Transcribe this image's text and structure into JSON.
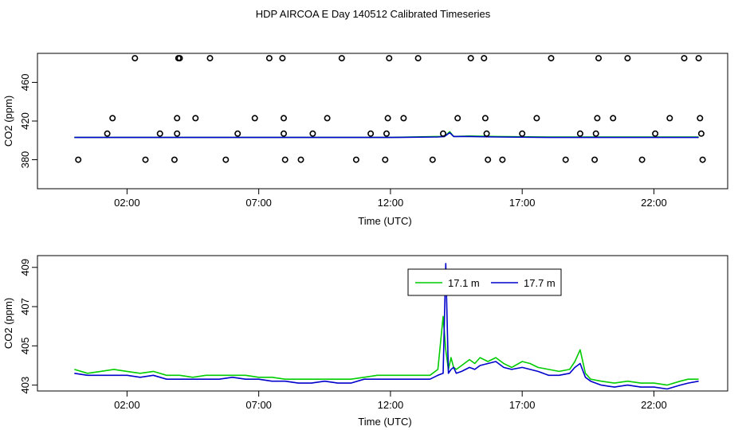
{
  "chart_title": "HDP AIRCOA E  Day 140512  Calibrated Timeseries",
  "colors": {
    "series_17_1": "#00cc00",
    "series_17_7": "#0000cc",
    "calibration_markers": "#000000"
  },
  "chart_data": [
    {
      "type": "scatter",
      "title": "",
      "xlabel": "Time (UTC)",
      "ylabel": "CO2 (ppm)",
      "xlim": [
        -1.4,
        24.8
      ],
      "ylim": [
        350,
        490
      ],
      "x_ticks": [
        2,
        7,
        12,
        17,
        22
      ],
      "x_tick_labels": [
        "02:00",
        "07:00",
        "12:00",
        "17:00",
        "22:00"
      ],
      "y_ticks": [
        380,
        420,
        460
      ],
      "y_tick_labels": [
        "380",
        "420",
        "460"
      ],
      "grid": false,
      "legend": "none",
      "calibration_points": {
        "x": [
          0.15,
          1.25,
          1.45,
          2.3,
          2.7,
          3.25,
          3.8,
          3.9,
          3.9,
          3.95,
          4.0,
          4.6,
          5.15,
          5.75,
          6.2,
          6.85,
          7.4,
          7.9,
          7.95,
          7.95,
          8.0,
          8.6,
          9.05,
          9.6,
          10.15,
          10.7,
          11.25,
          11.8,
          11.85,
          11.9,
          11.95,
          12.5,
          13.05,
          13.6,
          14.0,
          14.55,
          15.05,
          15.55,
          15.6,
          15.65,
          15.7,
          16.25,
          17.0,
          17.55,
          18.1,
          18.65,
          19.2,
          19.75,
          19.8,
          19.85,
          19.9,
          20.45,
          21.0,
          21.55,
          22.05,
          22.6,
          23.15,
          23.7,
          23.75,
          23.8,
          23.85
        ],
        "y": [
          380,
          407,
          423,
          485,
          380,
          407,
          380,
          407,
          423,
          485,
          485,
          423,
          485,
          380,
          407,
          423,
          485,
          485,
          423,
          407,
          380,
          380,
          407,
          423,
          485,
          380,
          407,
          380,
          407,
          423,
          485,
          423,
          485,
          380,
          407,
          423,
          485,
          485,
          423,
          407,
          380,
          380,
          407,
          423,
          485,
          380,
          407,
          380,
          407,
          423,
          485,
          423,
          485,
          380,
          407,
          423,
          485,
          485,
          423,
          407,
          380
        ]
      },
      "series": [
        {
          "x": [
            0.0,
            4.0,
            8.0,
            12.0,
            13.8,
            14.05,
            14.25,
            14.4,
            15.0,
            16.0,
            18.0,
            21.0,
            23.7
          ],
          "values": [
            403,
            403,
            403,
            403,
            404,
            404,
            409,
            404,
            404.5,
            404,
            403.5,
            403.5,
            403.5
          ]
        },
        {
          "x": [
            0.0,
            4.0,
            8.0,
            12.0,
            13.8,
            14.05,
            14.25,
            14.4,
            15.0,
            16.0,
            18.0,
            21.0,
            23.7
          ],
          "values": [
            403,
            403,
            403,
            403,
            403.5,
            404,
            408,
            404,
            404,
            403.5,
            403,
            403,
            403
          ]
        }
      ]
    },
    {
      "type": "line",
      "title": "",
      "xlabel": "Time (UTC)",
      "ylabel": "CO2 (ppm)",
      "xlim": [
        -1.4,
        24.8
      ],
      "ylim": [
        402.7,
        409.6
      ],
      "x_ticks": [
        2,
        7,
        12,
        17,
        22
      ],
      "x_tick_labels": [
        "02:00",
        "07:00",
        "12:00",
        "17:00",
        "22:00"
      ],
      "y_ticks": [
        403,
        405,
        407,
        409
      ],
      "y_tick_labels": [
        "403",
        "405",
        "407",
        "409"
      ],
      "grid": false,
      "legend": "top-center",
      "series": [
        {
          "name": "17.1 m",
          "x": [
            0.0,
            0.5,
            1.0,
            1.5,
            2.0,
            2.5,
            3.0,
            3.5,
            4.0,
            4.5,
            5.0,
            5.5,
            6.0,
            6.5,
            7.0,
            7.5,
            8.0,
            8.5,
            9.0,
            9.5,
            10.0,
            10.5,
            11.0,
            11.5,
            12.0,
            12.5,
            13.0,
            13.5,
            13.8,
            14.0,
            14.1,
            14.2,
            14.3,
            14.4,
            14.5,
            14.7,
            15.0,
            15.2,
            15.4,
            15.7,
            16.0,
            16.3,
            16.6,
            17.0,
            17.3,
            17.6,
            18.0,
            18.4,
            18.8,
            19.0,
            19.2,
            19.4,
            19.6,
            20.0,
            20.5,
            21.0,
            21.5,
            22.0,
            22.5,
            23.0,
            23.3,
            23.7
          ],
          "values": [
            403.8,
            403.6,
            403.7,
            403.8,
            403.7,
            403.6,
            403.7,
            403.5,
            403.5,
            403.4,
            403.5,
            403.5,
            403.5,
            403.5,
            403.4,
            403.4,
            403.3,
            403.3,
            403.3,
            403.3,
            403.3,
            403.3,
            403.4,
            403.5,
            403.5,
            403.5,
            403.5,
            403.5,
            403.8,
            406.5,
            404.8,
            403.8,
            404.4,
            403.9,
            403.8,
            404.0,
            404.3,
            404.1,
            404.4,
            404.2,
            404.4,
            404.1,
            403.9,
            404.2,
            404.1,
            403.9,
            403.8,
            403.7,
            403.8,
            404.2,
            404.8,
            403.6,
            403.3,
            403.2,
            403.1,
            403.2,
            403.1,
            403.1,
            403.0,
            403.2,
            403.3,
            403.3
          ]
        },
        {
          "name": "17.7 m",
          "x": [
            0.0,
            0.5,
            1.0,
            1.5,
            2.0,
            2.5,
            3.0,
            3.5,
            4.0,
            4.5,
            5.0,
            5.5,
            6.0,
            6.5,
            7.0,
            7.5,
            8.0,
            8.5,
            9.0,
            9.5,
            10.0,
            10.5,
            11.0,
            11.5,
            12.0,
            12.5,
            13.0,
            13.5,
            13.8,
            14.0,
            14.1,
            14.2,
            14.3,
            14.4,
            14.5,
            14.7,
            15.0,
            15.2,
            15.4,
            15.7,
            16.0,
            16.3,
            16.6,
            17.0,
            17.3,
            17.6,
            18.0,
            18.4,
            18.8,
            19.0,
            19.2,
            19.4,
            19.6,
            20.0,
            20.5,
            21.0,
            21.5,
            22.0,
            22.5,
            23.0,
            23.3,
            23.7
          ],
          "values": [
            403.6,
            403.5,
            403.5,
            403.5,
            403.5,
            403.4,
            403.5,
            403.3,
            403.3,
            403.3,
            403.3,
            403.3,
            403.4,
            403.3,
            403.3,
            403.2,
            403.2,
            403.1,
            403.1,
            403.2,
            403.1,
            403.1,
            403.3,
            403.3,
            403.3,
            403.3,
            403.3,
            403.3,
            403.5,
            403.6,
            409.2,
            403.6,
            403.8,
            403.9,
            403.6,
            403.7,
            403.9,
            403.8,
            404.0,
            404.1,
            404.2,
            403.9,
            403.8,
            403.9,
            403.8,
            403.7,
            403.5,
            403.5,
            403.6,
            403.9,
            404.1,
            403.4,
            403.2,
            403.0,
            402.9,
            403.0,
            402.9,
            402.9,
            402.8,
            403.0,
            403.1,
            403.2
          ]
        }
      ]
    }
  ]
}
